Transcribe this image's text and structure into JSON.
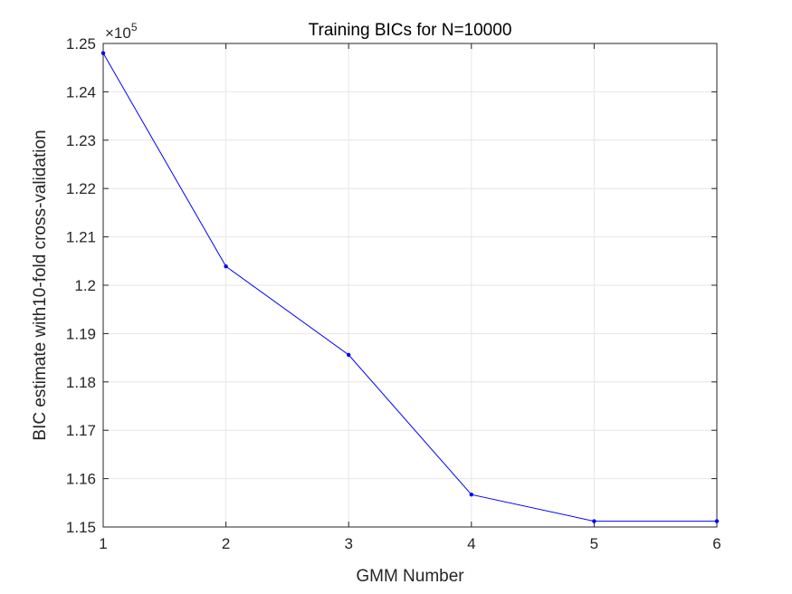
{
  "chart_data": {
    "type": "line",
    "title": "Training BICs for N=10000",
    "xlabel": "GMM Number",
    "ylabel": "BIC estimate with10-fold cross-validation",
    "y_multiplier": {
      "base": "×10",
      "exponent": "5"
    },
    "xlim": [
      1,
      6
    ],
    "ylim": [
      1.15,
      1.25
    ],
    "x_ticks": [
      1,
      2,
      3,
      4,
      5,
      6
    ],
    "x_tick_labels": [
      "1",
      "2",
      "3",
      "4",
      "5",
      "6"
    ],
    "y_ticks": [
      1.15,
      1.16,
      1.17,
      1.18,
      1.19,
      1.2,
      1.21,
      1.22,
      1.23,
      1.24,
      1.25
    ],
    "y_tick_labels": [
      "1.15",
      "1.16",
      "1.17",
      "1.18",
      "1.19",
      "1.2",
      "1.21",
      "1.22",
      "1.23",
      "1.24",
      "1.25"
    ],
    "grid": true,
    "series": [
      {
        "x": [
          1,
          2,
          3,
          4,
          5,
          6
        ],
        "values": [
          1.248,
          1.2039,
          1.1856,
          1.1567,
          1.1512,
          1.1512
        ],
        "color": "#0000ff"
      }
    ]
  }
}
